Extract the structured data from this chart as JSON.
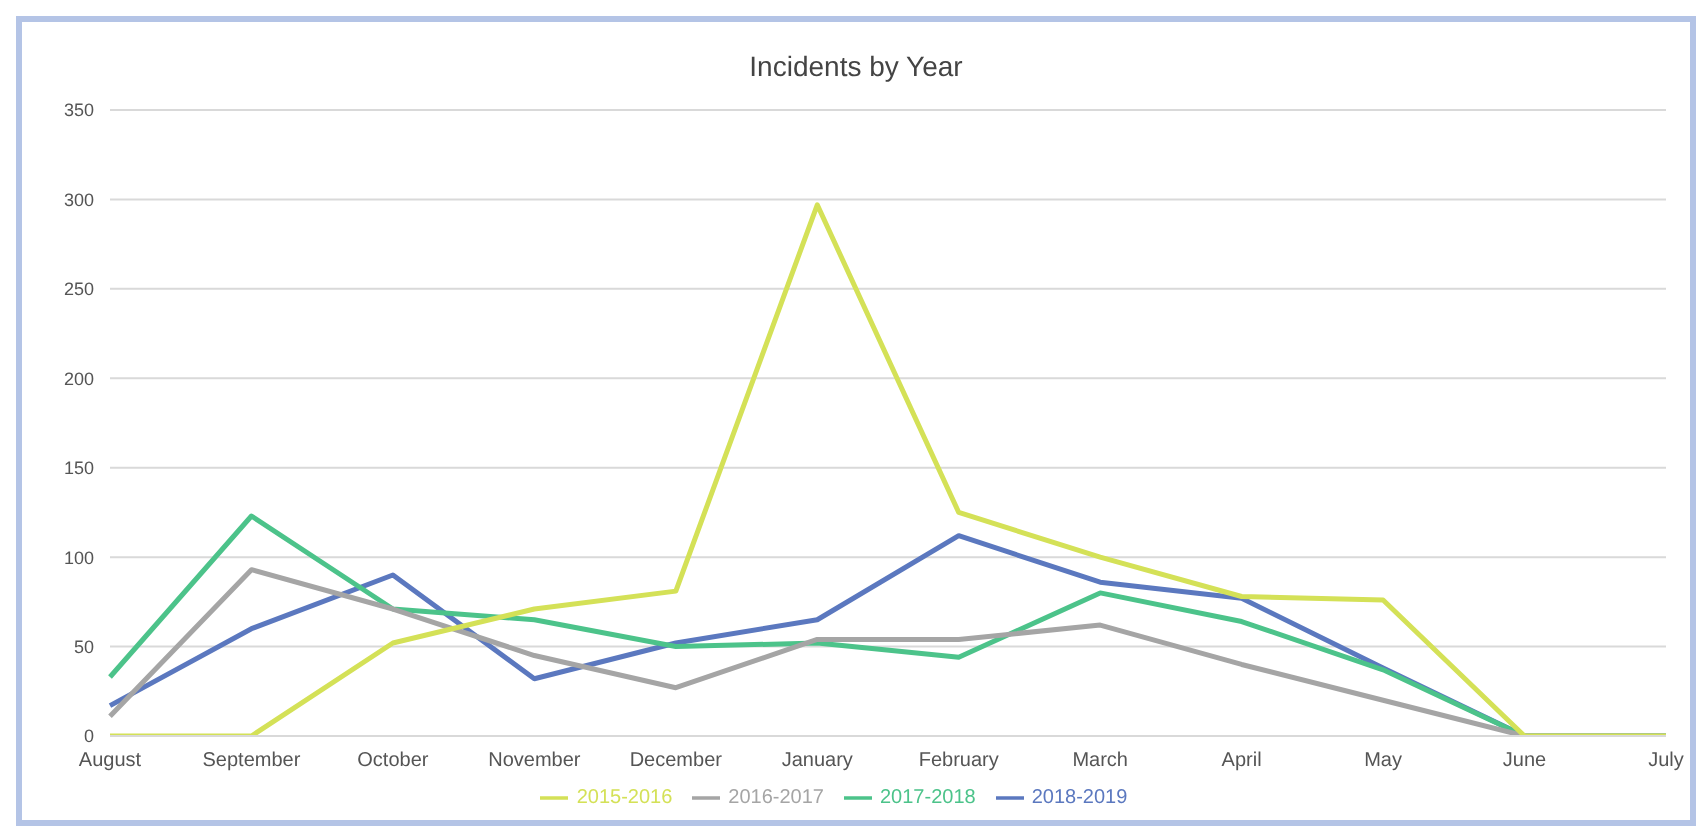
{
  "chart_data": {
    "type": "line",
    "title": "Incidents by Year",
    "categories": [
      "August",
      "September",
      "October",
      "November",
      "December",
      "January",
      "February",
      "March",
      "April",
      "May",
      "June",
      "July"
    ],
    "series": [
      {
        "name": "2018-2019",
        "color": "#5b78bf",
        "values": [
          17,
          60,
          90,
          32,
          52,
          65,
          112,
          86,
          77,
          38,
          0,
          0
        ]
      },
      {
        "name": "2017-2018",
        "color": "#4cc38a",
        "values": [
          33,
          123,
          71,
          65,
          50,
          52,
          44,
          80,
          64,
          37,
          0,
          0
        ]
      },
      {
        "name": "2016-2017",
        "color": "#a5a5a5",
        "values": [
          11,
          93,
          71,
          45,
          27,
          54,
          54,
          62,
          40,
          20,
          0,
          0
        ]
      },
      {
        "name": "2015-2016",
        "color": "#d4e157",
        "values": [
          0,
          0,
          52,
          71,
          81,
          297,
          125,
          100,
          78,
          76,
          0,
          0
        ]
      }
    ],
    "ylim": [
      0,
      350
    ],
    "yticks": [
      0,
      50,
      100,
      150,
      200,
      250,
      300,
      350
    ],
    "grid": "y",
    "legend": "bottom",
    "marker": "none",
    "line_style": "solid"
  }
}
